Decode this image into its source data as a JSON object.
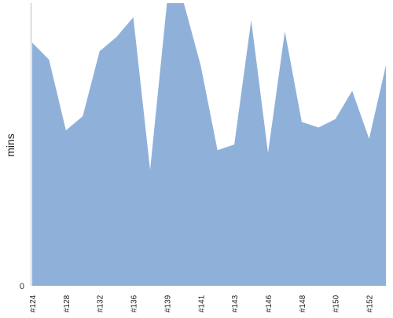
{
  "chart_data": {
    "type": "area",
    "title": "",
    "xlabel": "",
    "ylabel": "mins",
    "y_tick_labels": [
      "0"
    ],
    "ylim": [
      0,
      100
    ],
    "grid": false,
    "legend": "none",
    "color": "#8fb1d9",
    "x_tick_labels": [
      "#124",
      "#128",
      "#132",
      "#136",
      "#139",
      "#141",
      "#143",
      "#146",
      "#148",
      "#150",
      "#152"
    ],
    "series": [
      {
        "values": [
          86,
          80,
          55,
          60,
          83,
          88,
          95,
          41,
          100,
          100,
          78,
          48,
          50,
          94,
          47,
          90,
          58,
          56,
          59,
          69,
          52,
          78
        ]
      }
    ]
  }
}
